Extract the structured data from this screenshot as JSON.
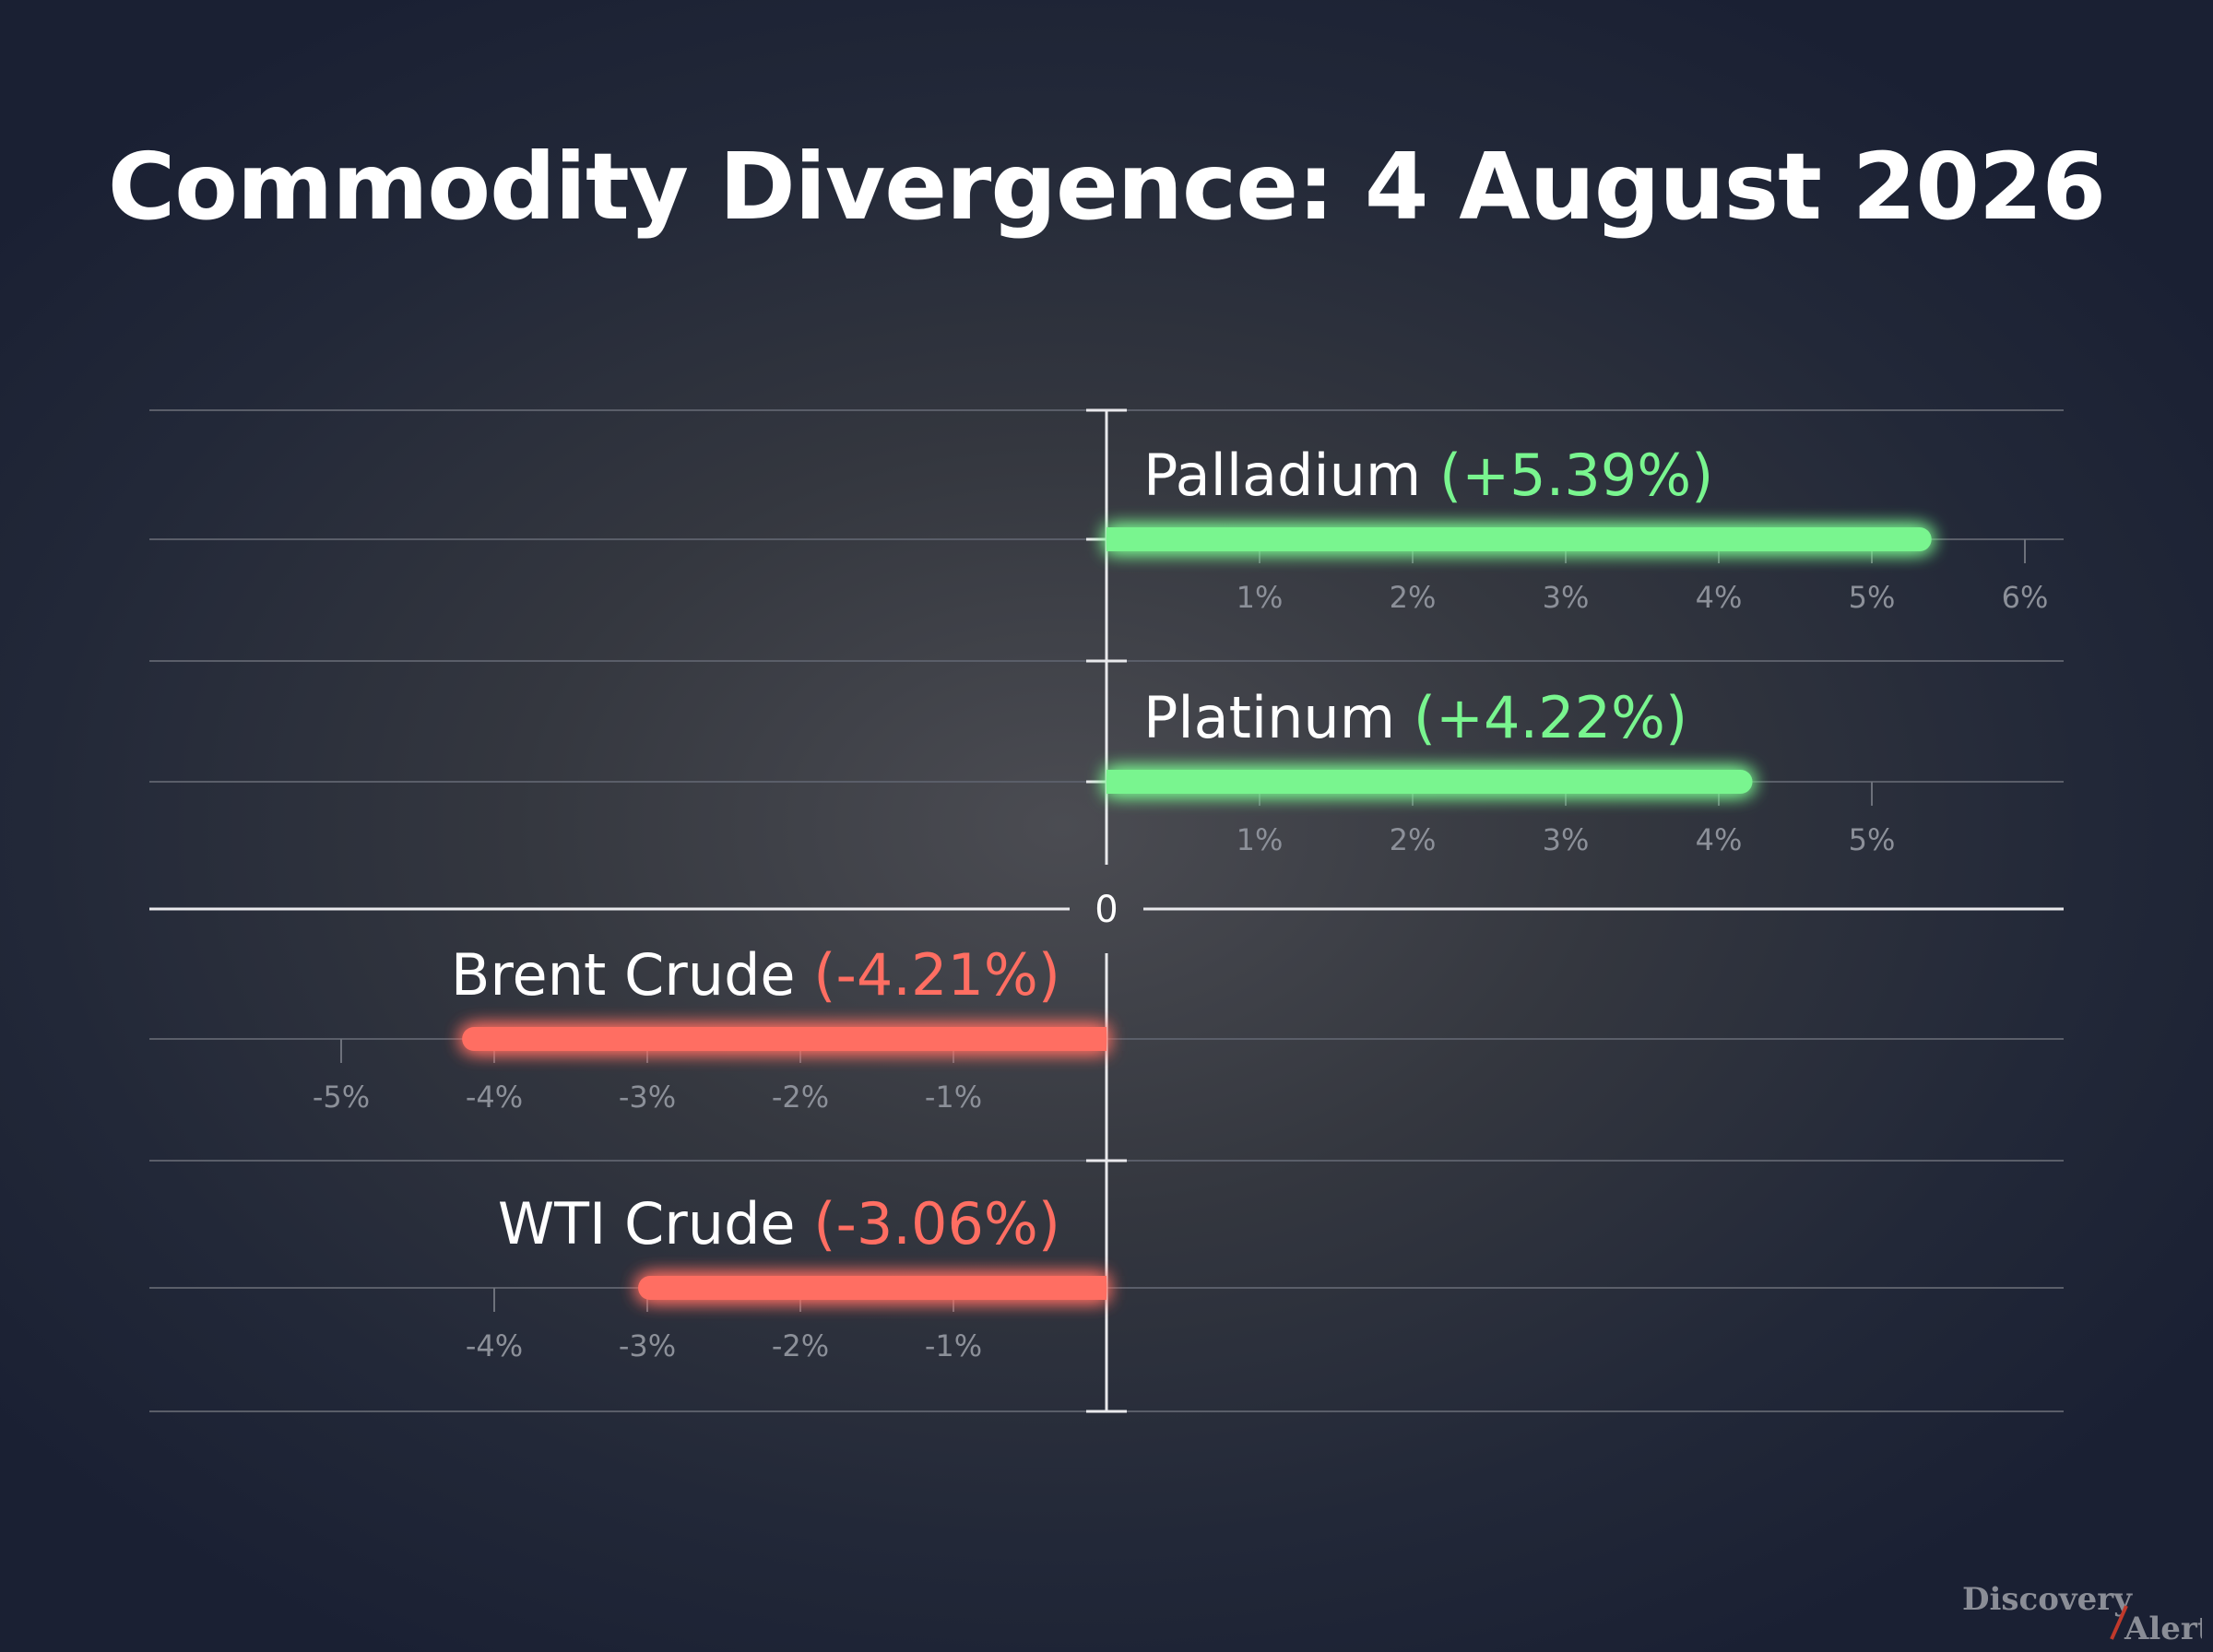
{
  "chart_data": {
    "type": "bar",
    "orientation": "horizontal",
    "title": "Commodity Divergence: 4 August 2026",
    "zero_label": "0",
    "bars": [
      {
        "name": "Palladium",
        "value": 5.39,
        "value_label": "(+5.39%)",
        "color": "#79f58f",
        "ticks": [
          "1%",
          "2%",
          "3%",
          "4%",
          "5%",
          "6%"
        ]
      },
      {
        "name": "Platinum",
        "value": 4.22,
        "value_label": "(+4.22%)",
        "color": "#79f58f",
        "ticks": [
          "1%",
          "2%",
          "3%",
          "4%",
          "5%"
        ]
      },
      {
        "name": "Brent Crude",
        "value": -4.21,
        "value_label": "(-4.21%)",
        "color": "#ff6e62",
        "ticks": [
          "-5%",
          "-4%",
          "-3%",
          "-2%",
          "-1%"
        ]
      },
      {
        "name": "WTI Crude",
        "value": -3.06,
        "value_label": "(-3.06%)",
        "color": "#ff6e62",
        "ticks": [
          "-4%",
          "-3%",
          "-2%",
          "-1%"
        ]
      }
    ]
  },
  "watermark": {
    "line1": "Discovery",
    "line2": "Alert",
    "slash_color": "#c0392b"
  }
}
